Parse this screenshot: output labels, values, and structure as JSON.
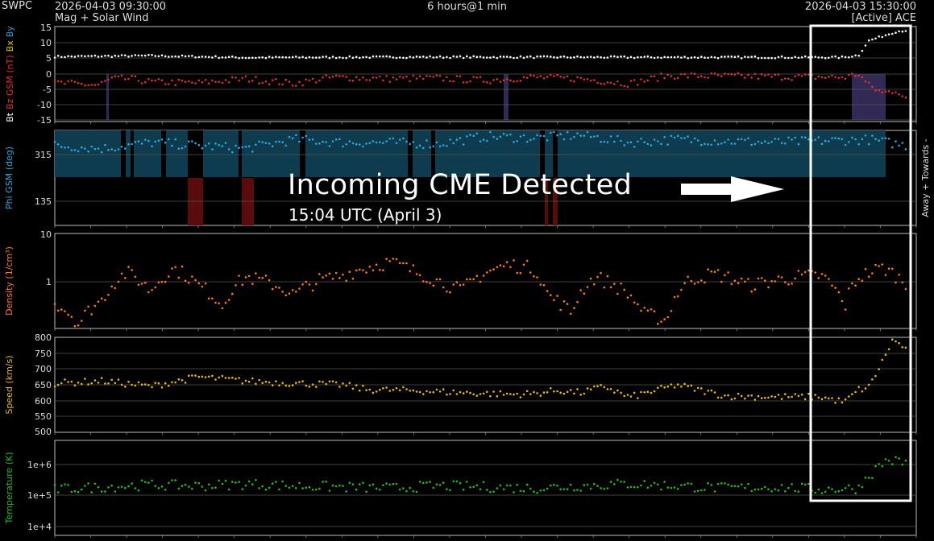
{
  "header": {
    "logo": "SWPC",
    "start_time": "2026-04-03 09:30:00",
    "mode": "Mag + Solar Wind",
    "span": "6 hours@1 min",
    "end_time": "2026-04-03 15:30:00",
    "source": "[Active] ACE"
  },
  "annotation": {
    "title": "Incoming CME Detected",
    "time": "15:04 UTC (April 3)"
  },
  "chart_data": [
    {
      "type": "scatter",
      "panel": "mag",
      "ylabel_parts": [
        {
          "text": "Bt",
          "color": "#ffffff"
        },
        {
          "text": "Bz GSM (nT)",
          "color": "#e03030"
        },
        {
          "text": "Bx",
          "color": "#e6c800"
        },
        {
          "text": "By",
          "color": "#2aa8e0"
        }
      ],
      "ylim": [
        -15,
        15
      ],
      "yticks": [
        "15",
        "10",
        "5",
        "0",
        "-5",
        "-10",
        "-15"
      ],
      "xlim": [
        0,
        360
      ],
      "series": [
        {
          "name": "Bt",
          "color": "#ffffff",
          "anchors": [
            [
              0,
              5.5
            ],
            [
              40,
              5.8
            ],
            [
              80,
              5.2
            ],
            [
              150,
              5.4
            ],
            [
              250,
              5.3
            ],
            [
              330,
              5.3
            ],
            [
              336,
              6
            ],
            [
              340,
              10.5
            ],
            [
              346,
              12
            ],
            [
              352,
              13.5
            ],
            [
              356,
              13.8
            ]
          ]
        },
        {
          "name": "Bz",
          "color": "#e03030",
          "anchors": [
            [
              0,
              -2.8
            ],
            [
              18,
              -3.5
            ],
            [
              24,
              -1.5
            ],
            [
              32,
              -1.5
            ],
            [
              40,
              -2.5
            ],
            [
              60,
              -2.8
            ],
            [
              80,
              -1.5
            ],
            [
              100,
              -3
            ],
            [
              116,
              -1
            ],
            [
              140,
              -1.5
            ],
            [
              160,
              -1.3
            ],
            [
              180,
              -2
            ],
            [
              200,
              -1
            ],
            [
              220,
              -1.5
            ],
            [
              240,
              -3
            ],
            [
              256,
              -0.5
            ],
            [
              300,
              -0.8
            ],
            [
              330,
              -1
            ],
            [
              336,
              0
            ],
            [
              340,
              -3.5
            ],
            [
              346,
              -6
            ],
            [
              352,
              -5
            ],
            [
              356,
              -8
            ]
          ]
        }
      ]
    },
    {
      "type": "scatter",
      "panel": "phi",
      "ylabel": "Phi GSM (deg)",
      "right_label": "Away +   Towards -",
      "ylim": [
        45,
        360
      ],
      "yticks": [
        "315",
        "135"
      ],
      "xlim": [
        0,
        360
      ],
      "series": [
        {
          "name": "Phi",
          "color": "#2aa8e0",
          "anchors": [
            [
              0,
              310
            ],
            [
              20,
              300
            ],
            [
              40,
              320
            ],
            [
              60,
              310
            ],
            [
              80,
              300
            ],
            [
              100,
              330
            ],
            [
              120,
              320
            ],
            [
              140,
              320
            ],
            [
              160,
              315
            ],
            [
              180,
              340
            ],
            [
              200,
              335
            ],
            [
              220,
              345
            ],
            [
              240,
              320
            ],
            [
              260,
              330
            ],
            [
              280,
              325
            ],
            [
              300,
              320
            ],
            [
              320,
              325
            ],
            [
              340,
              330
            ],
            [
              356,
              310
            ]
          ]
        }
      ]
    },
    {
      "type": "scatter",
      "panel": "density",
      "ylabel": "Density (1/cm³)",
      "scale": "log",
      "ylim": [
        0.1,
        10
      ],
      "yticks": [
        "10",
        "1"
      ],
      "xlim": [
        0,
        360
      ],
      "series": [
        {
          "name": "Density",
          "color": "#ff7a1a",
          "anchors": [
            [
              0,
              0.35
            ],
            [
              10,
              0.12
            ],
            [
              20,
              0.4
            ],
            [
              30,
              1.5
            ],
            [
              40,
              0.6
            ],
            [
              50,
              1.8
            ],
            [
              60,
              0.8
            ],
            [
              70,
              0.3
            ],
            [
              80,
              1.2
            ],
            [
              90,
              0.9
            ],
            [
              100,
              0.5
            ],
            [
              110,
              1.0
            ],
            [
              120,
              1.3
            ],
            [
              130,
              1.9
            ],
            [
              140,
              2.5
            ],
            [
              150,
              1.6
            ],
            [
              160,
              1.0
            ],
            [
              170,
              0.6
            ],
            [
              180,
              1.5
            ],
            [
              190,
              2.2
            ],
            [
              200,
              1.8
            ],
            [
              206,
              0.5
            ],
            [
              216,
              0.2
            ],
            [
              226,
              1.2
            ],
            [
              236,
              0.7
            ],
            [
              246,
              0.2
            ],
            [
              256,
              0.15
            ],
            [
              266,
              1.1
            ],
            [
              276,
              1.4
            ],
            [
              290,
              0.8
            ],
            [
              300,
              1.0
            ],
            [
              310,
              1.2
            ],
            [
              320,
              1.3
            ],
            [
              330,
              0.25
            ],
            [
              336,
              1.2
            ],
            [
              346,
              1.9
            ],
            [
              356,
              0.8
            ]
          ]
        }
      ]
    },
    {
      "type": "scatter",
      "panel": "speed",
      "ylabel": "Speed (km/s)",
      "ylim": [
        500,
        800
      ],
      "yticks": [
        "800",
        "750",
        "700",
        "650",
        "600",
        "550",
        "500"
      ],
      "xlim": [
        0,
        360
      ],
      "series": [
        {
          "name": "Speed",
          "color": "#e8b818",
          "anchors": [
            [
              0,
              655
            ],
            [
              20,
              662
            ],
            [
              40,
              645
            ],
            [
              60,
              675
            ],
            [
              80,
              662
            ],
            [
              100,
              655
            ],
            [
              120,
              650
            ],
            [
              130,
              635
            ],
            [
              150,
              632
            ],
            [
              170,
              625
            ],
            [
              190,
              620
            ],
            [
              200,
              622
            ],
            [
              210,
              632
            ],
            [
              220,
              625
            ],
            [
              230,
              645
            ],
            [
              240,
              610
            ],
            [
              260,
              650
            ],
            [
              280,
              615
            ],
            [
              300,
              612
            ],
            [
              320,
              612
            ],
            [
              330,
              595
            ],
            [
              336,
              635
            ],
            [
              340,
              640
            ],
            [
              346,
              725
            ],
            [
              350,
              790
            ],
            [
              354,
              775
            ],
            [
              356,
              755
            ]
          ]
        }
      ]
    },
    {
      "type": "scatter",
      "panel": "temperature",
      "ylabel": "Temperature (K)",
      "scale": "log",
      "ylim": [
        5000,
        3000000
      ],
      "yticks": [
        "1e+6",
        "1e+5",
        "1e+4"
      ],
      "xlim": [
        0,
        360
      ],
      "series": [
        {
          "name": "Temperature",
          "color": "#22bb22",
          "anchors": [
            [
              0,
              110000
            ],
            [
              20,
              130000
            ],
            [
              40,
              150000
            ],
            [
              60,
              140000
            ],
            [
              80,
              160000
            ],
            [
              100,
              140000
            ],
            [
              120,
              130000
            ],
            [
              140,
              120000
            ],
            [
              160,
              140000
            ],
            [
              180,
              130000
            ],
            [
              200,
              120000
            ],
            [
              220,
              140000
            ],
            [
              240,
              160000
            ],
            [
              260,
              140000
            ],
            [
              280,
              120000
            ],
            [
              300,
              130000
            ],
            [
              320,
              110000
            ],
            [
              336,
              120000
            ],
            [
              342,
              350000
            ],
            [
              348,
              800000
            ],
            [
              356,
              650000
            ]
          ]
        }
      ]
    }
  ]
}
